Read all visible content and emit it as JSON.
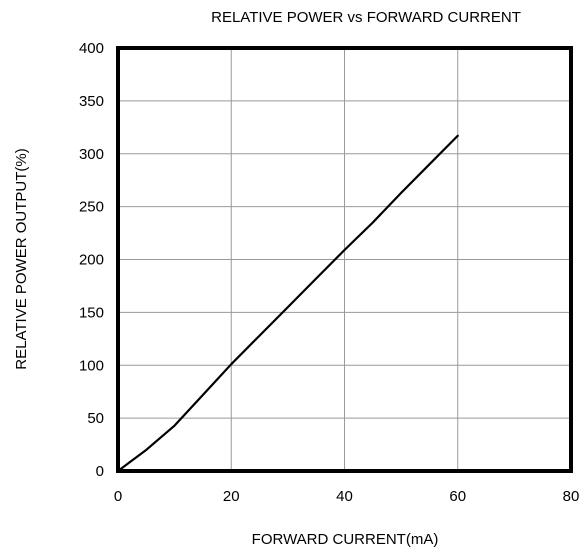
{
  "chart_data": {
    "type": "line",
    "title": "RELATIVE POWER vs FORWARD CURRENT",
    "xlabel": "FORWARD CURRENT(mA)",
    "ylabel": "RELATIVE POWER OUTPUT(%)",
    "xlim": [
      0,
      80
    ],
    "ylim": [
      0,
      400
    ],
    "xticks": [
      0,
      20,
      40,
      60,
      80
    ],
    "yticks": [
      0,
      50,
      100,
      150,
      200,
      250,
      300,
      350,
      400
    ],
    "xtick_labels": [
      "0",
      "20",
      "40",
      "60",
      "80"
    ],
    "ytick_labels": [
      "0",
      "50",
      "100",
      "150",
      "200",
      "250",
      "300",
      "350",
      "400"
    ],
    "grid": true,
    "series": [
      {
        "x": [
          0,
          2,
          5,
          10,
          15,
          20,
          25,
          30,
          35,
          40,
          45,
          50,
          55,
          60
        ],
        "values": [
          0,
          8,
          20,
          43,
          72,
          101,
          128,
          155,
          182,
          209,
          235,
          263,
          290,
          317
        ]
      }
    ],
    "colors": {
      "line": "#000000",
      "grid": "#9a9a9a",
      "frame": "#000000"
    }
  }
}
